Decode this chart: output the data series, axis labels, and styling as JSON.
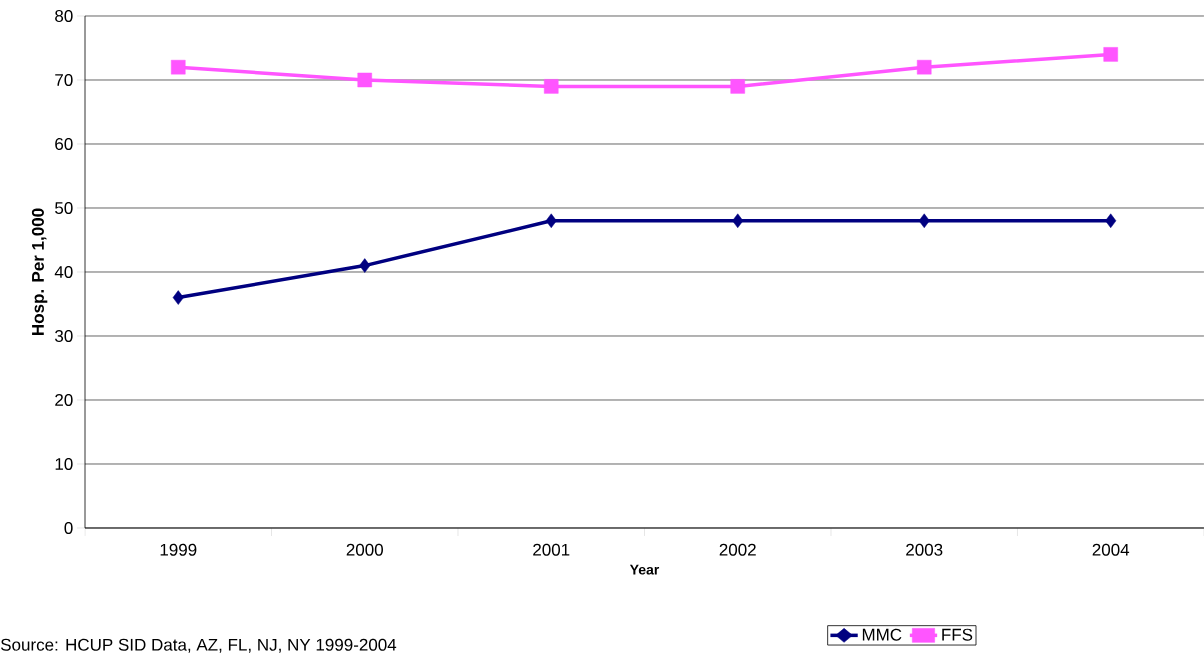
{
  "chart_data": {
    "type": "line",
    "xlabel": "Year",
    "ylabel": "Hosp. Per 1,000",
    "categories": [
      "1999",
      "2000",
      "2001",
      "2002",
      "2003",
      "2004"
    ],
    "series": [
      {
        "name": "MMC",
        "color": "#000080",
        "marker": "diamond",
        "values": [
          36,
          41,
          48,
          48,
          48,
          48
        ]
      },
      {
        "name": "FFS",
        "color": "#ff55ff",
        "marker": "square",
        "values": [
          72,
          70,
          69,
          69,
          72,
          74
        ]
      }
    ],
    "ylim": [
      0,
      80
    ],
    "yticks": [
      0,
      10,
      20,
      30,
      40,
      50,
      60,
      70,
      80
    ],
    "grid": "y",
    "legend": "bottom right",
    "annotations": [
      "Source: HCUP SID Data, AZ, FL, NJ, NY 1999-2004"
    ]
  }
}
